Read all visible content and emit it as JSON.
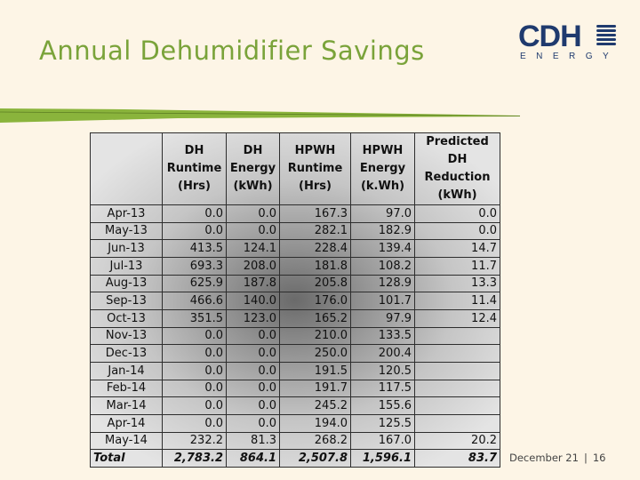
{
  "title": "Annual Dehumidifier Savings",
  "logo": {
    "main": "CDH",
    "sub": "ENERGY"
  },
  "colors": {
    "title": "#7aa33a",
    "logo": "#1f3a6e",
    "background": "#fdf5e6",
    "accent_bar": "#8ab43c"
  },
  "table": {
    "headers": [
      [
        ""
      ],
      [
        "DH",
        "Runtime",
        "(Hrs)"
      ],
      [
        "DH",
        "Energy",
        "(kWh)"
      ],
      [
        "HPWH",
        "Runtime",
        "(Hrs)"
      ],
      [
        "HPWH",
        "Energy",
        "(k.Wh)"
      ],
      [
        "Predicted DH",
        "Reduction",
        "(kWh)"
      ]
    ],
    "rows": [
      [
        "Apr-13",
        "0.0",
        "0.0",
        "167.3",
        "97.0",
        "0.0"
      ],
      [
        "May-13",
        "0.0",
        "0.0",
        "282.1",
        "182.9",
        "0.0"
      ],
      [
        "Jun-13",
        "413.5",
        "124.1",
        "228.4",
        "139.4",
        "14.7"
      ],
      [
        "Jul-13",
        "693.3",
        "208.0",
        "181.8",
        "108.2",
        "11.7"
      ],
      [
        "Aug-13",
        "625.9",
        "187.8",
        "205.8",
        "128.9",
        "13.3"
      ],
      [
        "Sep-13",
        "466.6",
        "140.0",
        "176.0",
        "101.7",
        "11.4"
      ],
      [
        "Oct-13",
        "351.5",
        "123.0",
        "165.2",
        "97.9",
        "12.4"
      ],
      [
        "Nov-13",
        "0.0",
        "0.0",
        "210.0",
        "133.5",
        ""
      ],
      [
        "Dec-13",
        "0.0",
        "0.0",
        "250.0",
        "200.4",
        ""
      ],
      [
        "Jan-14",
        "0.0",
        "0.0",
        "191.5",
        "120.5",
        ""
      ],
      [
        "Feb-14",
        "0.0",
        "0.0",
        "191.7",
        "117.5",
        ""
      ],
      [
        "Mar-14",
        "0.0",
        "0.0",
        "245.2",
        "155.6",
        ""
      ],
      [
        "Apr-14",
        "0.0",
        "0.0",
        "194.0",
        "125.5",
        ""
      ],
      [
        "May-14",
        "232.2",
        "81.3",
        "268.2",
        "167.0",
        "20.2"
      ]
    ],
    "total": [
      "Total",
      "2,783.2",
      "864.1",
      "2,507.8",
      "1,596.1",
      "83.7"
    ]
  },
  "footer": {
    "date": "December 21",
    "separator": "|",
    "page": "16"
  }
}
